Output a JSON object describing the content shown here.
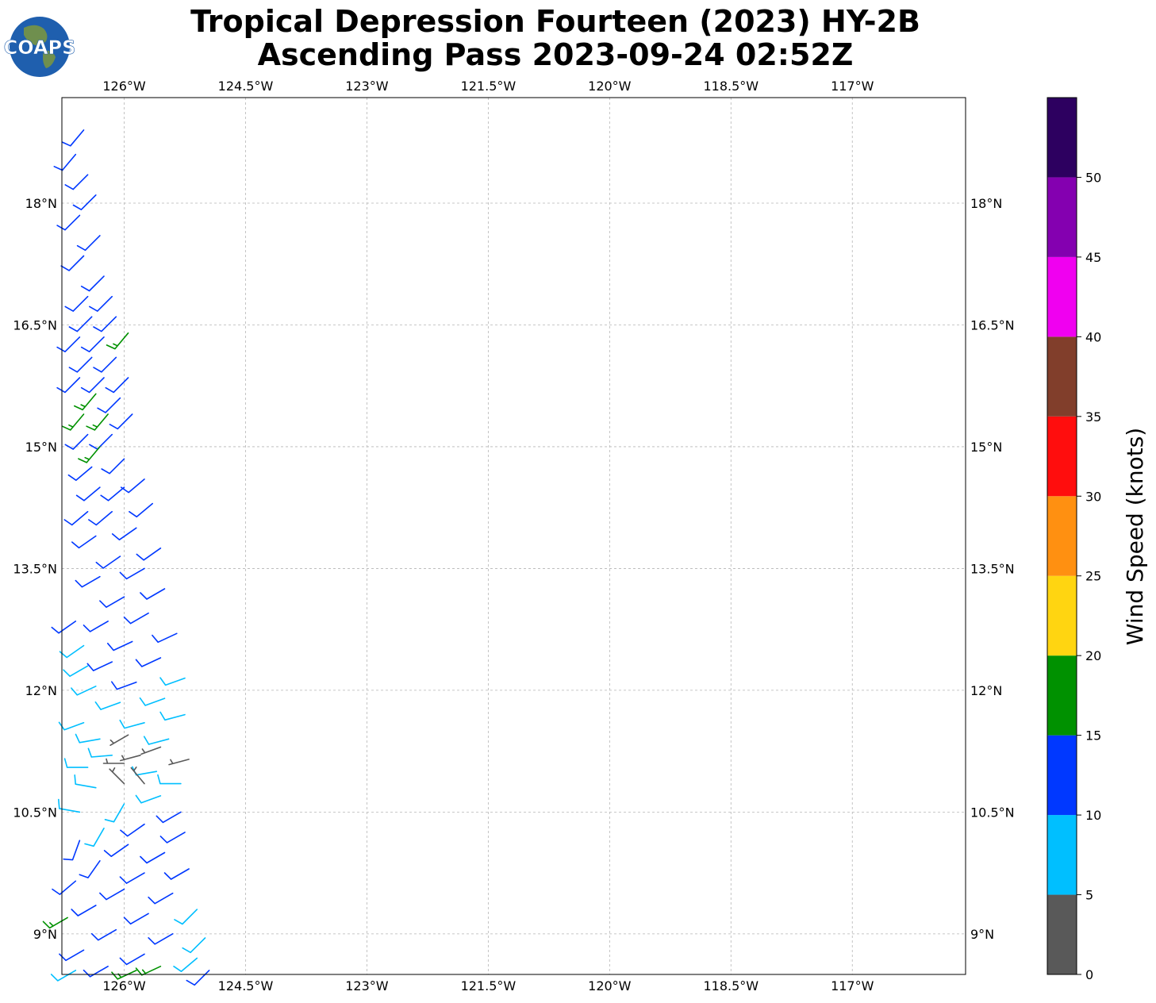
{
  "title": {
    "line1": "Tropical Depression Fourteen (2023) HY-2B",
    "line2": "Ascending Pass 2023-09-24 02:52Z"
  },
  "logo": {
    "text": "COAPS",
    "icon": "globe-logo-icon",
    "colors": {
      "ocean": "#1f5fae",
      "land": "#6f8f4e",
      "text": "#ffffff"
    }
  },
  "chart_data": {
    "type": "wind-barb-map",
    "title": "Tropical Depression Fourteen (2023) HY-2B Ascending Pass 2023-09-24 02:52Z",
    "projection": "PlateCarree",
    "extent": {
      "lon": [
        -126.77,
        -115.6
      ],
      "lat": [
        8.5,
        19.3
      ]
    },
    "lon_ticks": [
      -126,
      -124.5,
      -123,
      -121.5,
      -120,
      -118.5,
      -117
    ],
    "lon_tick_labels": [
      "126°W",
      "124.5°W",
      "123°W",
      "121.5°W",
      "120°W",
      "118.5°W",
      "117°W"
    ],
    "lat_ticks": [
      9,
      10.5,
      12,
      13.5,
      15,
      16.5,
      18
    ],
    "lat_tick_labels": [
      "9°N",
      "10.5°N",
      "12°N",
      "13.5°N",
      "15°N",
      "16.5°N",
      "18°N"
    ],
    "grid": true,
    "grid_style": "dashed light gray",
    "colorbar": {
      "label": "Wind Speed (knots)",
      "ticks": [
        0,
        5,
        10,
        15,
        20,
        25,
        30,
        35,
        40,
        45,
        50
      ],
      "tick_labels": [
        "0",
        "5",
        "10",
        "15",
        "20",
        "25",
        "30",
        "35",
        "40",
        "45",
        "50"
      ],
      "bounds": [
        0,
        5,
        10,
        15,
        20,
        25,
        30,
        35,
        40,
        45,
        50,
        55
      ],
      "colors": [
        "#595959",
        "#00bfff",
        "#0038ff",
        "#009100",
        "#ffd511",
        "#ff9011",
        "#ff0d0d",
        "#813e2b",
        "#f000f0",
        "#8400b0",
        "#2d0060"
      ]
    },
    "barbs": [
      {
        "lat": 18.9,
        "lon": -126.5,
        "speed": 12,
        "dir": 220
      },
      {
        "lat": 18.6,
        "lon": -126.6,
        "speed": 12,
        "dir": 220
      },
      {
        "lat": 18.35,
        "lon": -126.45,
        "speed": 12,
        "dir": 225
      },
      {
        "lat": 18.1,
        "lon": -126.35,
        "speed": 12,
        "dir": 225
      },
      {
        "lat": 17.85,
        "lon": -126.55,
        "speed": 12,
        "dir": 225
      },
      {
        "lat": 17.6,
        "lon": -126.3,
        "speed": 12,
        "dir": 225
      },
      {
        "lat": 17.35,
        "lon": -126.5,
        "speed": 12,
        "dir": 225
      },
      {
        "lat": 17.1,
        "lon": -126.25,
        "speed": 12,
        "dir": 225
      },
      {
        "lat": 16.85,
        "lon": -126.45,
        "speed": 12,
        "dir": 225
      },
      {
        "lat": 16.85,
        "lon": -126.15,
        "speed": 12,
        "dir": 225
      },
      {
        "lat": 16.6,
        "lon": -126.4,
        "speed": 12,
        "dir": 225
      },
      {
        "lat": 16.6,
        "lon": -126.1,
        "speed": 12,
        "dir": 225
      },
      {
        "lat": 16.35,
        "lon": -126.55,
        "speed": 12,
        "dir": 225
      },
      {
        "lat": 16.35,
        "lon": -126.25,
        "speed": 12,
        "dir": 225
      },
      {
        "lat": 16.4,
        "lon": -125.95,
        "speed": 16,
        "dir": 220
      },
      {
        "lat": 16.1,
        "lon": -126.4,
        "speed": 12,
        "dir": 225
      },
      {
        "lat": 16.1,
        "lon": -126.1,
        "speed": 12,
        "dir": 225
      },
      {
        "lat": 15.85,
        "lon": -126.55,
        "speed": 12,
        "dir": 225
      },
      {
        "lat": 15.85,
        "lon": -126.25,
        "speed": 12,
        "dir": 225
      },
      {
        "lat": 15.85,
        "lon": -125.95,
        "speed": 12,
        "dir": 225
      },
      {
        "lat": 15.65,
        "lon": -126.35,
        "speed": 16,
        "dir": 220
      },
      {
        "lat": 15.6,
        "lon": -126.05,
        "speed": 12,
        "dir": 225
      },
      {
        "lat": 15.4,
        "lon": -126.5,
        "speed": 16,
        "dir": 220
      },
      {
        "lat": 15.4,
        "lon": -126.2,
        "speed": 16,
        "dir": 220
      },
      {
        "lat": 15.4,
        "lon": -125.9,
        "speed": 12,
        "dir": 225
      },
      {
        "lat": 15.15,
        "lon": -126.45,
        "speed": 12,
        "dir": 225
      },
      {
        "lat": 15.15,
        "lon": -126.15,
        "speed": 12,
        "dir": 225
      },
      {
        "lat": 15.0,
        "lon": -126.3,
        "speed": 16,
        "dir": 220
      },
      {
        "lat": 14.85,
        "lon": -126.0,
        "speed": 12,
        "dir": 225
      },
      {
        "lat": 14.75,
        "lon": -126.4,
        "speed": 12,
        "dir": 230
      },
      {
        "lat": 14.6,
        "lon": -125.75,
        "speed": 12,
        "dir": 230
      },
      {
        "lat": 14.5,
        "lon": -126.3,
        "speed": 12,
        "dir": 230
      },
      {
        "lat": 14.5,
        "lon": -126.0,
        "speed": 12,
        "dir": 230
      },
      {
        "lat": 14.3,
        "lon": -125.65,
        "speed": 12,
        "dir": 230
      },
      {
        "lat": 14.2,
        "lon": -126.45,
        "speed": 12,
        "dir": 230
      },
      {
        "lat": 14.2,
        "lon": -126.15,
        "speed": 12,
        "dir": 230
      },
      {
        "lat": 14.0,
        "lon": -125.85,
        "speed": 12,
        "dir": 235
      },
      {
        "lat": 13.9,
        "lon": -126.35,
        "speed": 12,
        "dir": 235
      },
      {
        "lat": 13.75,
        "lon": -125.55,
        "speed": 12,
        "dir": 235
      },
      {
        "lat": 13.65,
        "lon": -126.05,
        "speed": 12,
        "dir": 235
      },
      {
        "lat": 13.5,
        "lon": -125.75,
        "speed": 12,
        "dir": 240
      },
      {
        "lat": 13.4,
        "lon": -126.3,
        "speed": 12,
        "dir": 240
      },
      {
        "lat": 13.25,
        "lon": -125.5,
        "speed": 12,
        "dir": 240
      },
      {
        "lat": 13.15,
        "lon": -126.0,
        "speed": 12,
        "dir": 240
      },
      {
        "lat": 12.95,
        "lon": -125.7,
        "speed": 12,
        "dir": 240
      },
      {
        "lat": 12.85,
        "lon": -126.6,
        "speed": 12,
        "dir": 235
      },
      {
        "lat": 12.85,
        "lon": -126.2,
        "speed": 12,
        "dir": 240
      },
      {
        "lat": 12.7,
        "lon": -125.35,
        "speed": 12,
        "dir": 245
      },
      {
        "lat": 12.6,
        "lon": -125.9,
        "speed": 12,
        "dir": 245
      },
      {
        "lat": 12.55,
        "lon": -126.5,
        "speed": 8,
        "dir": 235
      },
      {
        "lat": 12.4,
        "lon": -125.55,
        "speed": 12,
        "dir": 245
      },
      {
        "lat": 12.35,
        "lon": -126.15,
        "speed": 12,
        "dir": 245
      },
      {
        "lat": 12.3,
        "lon": -126.45,
        "speed": 8,
        "dir": 240
      },
      {
        "lat": 12.15,
        "lon": -125.25,
        "speed": 8,
        "dir": 250
      },
      {
        "lat": 12.1,
        "lon": -125.85,
        "speed": 12,
        "dir": 250
      },
      {
        "lat": 12.05,
        "lon": -126.35,
        "speed": 8,
        "dir": 245
      },
      {
        "lat": 11.9,
        "lon": -125.5,
        "speed": 8,
        "dir": 250
      },
      {
        "lat": 11.85,
        "lon": -126.05,
        "speed": 8,
        "dir": 250
      },
      {
        "lat": 11.7,
        "lon": -125.25,
        "speed": 8,
        "dir": 255
      },
      {
        "lat": 11.6,
        "lon": -126.5,
        "speed": 8,
        "dir": 250
      },
      {
        "lat": 11.6,
        "lon": -125.75,
        "speed": 8,
        "dir": 255
      },
      {
        "lat": 11.45,
        "lon": -125.95,
        "speed": 3,
        "dir": 240
      },
      {
        "lat": 11.4,
        "lon": -126.3,
        "speed": 8,
        "dir": 260
      },
      {
        "lat": 11.4,
        "lon": -125.45,
        "speed": 8,
        "dir": 255
      },
      {
        "lat": 11.3,
        "lon": -125.55,
        "speed": 3,
        "dir": 250
      },
      {
        "lat": 11.2,
        "lon": -125.8,
        "speed": 3,
        "dir": 255
      },
      {
        "lat": 11.2,
        "lon": -126.15,
        "speed": 8,
        "dir": 265
      },
      {
        "lat": 11.15,
        "lon": -125.2,
        "speed": 3,
        "dir": 255
      },
      {
        "lat": 11.1,
        "lon": -126.0,
        "speed": 3,
        "dir": 270
      },
      {
        "lat": 11.05,
        "lon": -126.45,
        "speed": 8,
        "dir": 270
      },
      {
        "lat": 11.0,
        "lon": -125.6,
        "speed": 8,
        "dir": 260
      },
      {
        "lat": 10.85,
        "lon": -126.0,
        "speed": 3,
        "dir": 315
      },
      {
        "lat": 10.85,
        "lon": -125.75,
        "speed": 3,
        "dir": 320
      },
      {
        "lat": 10.85,
        "lon": -125.3,
        "speed": 8,
        "dir": 270
      },
      {
        "lat": 10.8,
        "lon": -126.35,
        "speed": 8,
        "dir": 280
      },
      {
        "lat": 10.7,
        "lon": -125.55,
        "speed": 8,
        "dir": 250
      },
      {
        "lat": 10.6,
        "lon": -126.0,
        "speed": 8,
        "dir": 210
      },
      {
        "lat": 10.5,
        "lon": -126.55,
        "speed": 8,
        "dir": 280
      },
      {
        "lat": 10.5,
        "lon": -125.3,
        "speed": 12,
        "dir": 240
      },
      {
        "lat": 10.35,
        "lon": -125.75,
        "speed": 12,
        "dir": 235
      },
      {
        "lat": 10.3,
        "lon": -126.25,
        "speed": 8,
        "dir": 210
      },
      {
        "lat": 10.25,
        "lon": -125.25,
        "speed": 12,
        "dir": 240
      },
      {
        "lat": 10.15,
        "lon": -126.55,
        "speed": 12,
        "dir": 200
      },
      {
        "lat": 10.1,
        "lon": -125.95,
        "speed": 12,
        "dir": 235
      },
      {
        "lat": 10.0,
        "lon": -125.5,
        "speed": 12,
        "dir": 240
      },
      {
        "lat": 9.9,
        "lon": -126.3,
        "speed": 12,
        "dir": 215
      },
      {
        "lat": 9.8,
        "lon": -125.2,
        "speed": 12,
        "dir": 240
      },
      {
        "lat": 9.75,
        "lon": -125.75,
        "speed": 12,
        "dir": 240
      },
      {
        "lat": 9.65,
        "lon": -126.6,
        "speed": 12,
        "dir": 230
      },
      {
        "lat": 9.55,
        "lon": -126.0,
        "speed": 12,
        "dir": 240
      },
      {
        "lat": 9.5,
        "lon": -125.4,
        "speed": 12,
        "dir": 240
      },
      {
        "lat": 9.35,
        "lon": -126.35,
        "speed": 12,
        "dir": 240
      },
      {
        "lat": 9.3,
        "lon": -125.1,
        "speed": 8,
        "dir": 225
      },
      {
        "lat": 9.25,
        "lon": -125.7,
        "speed": 12,
        "dir": 240
      },
      {
        "lat": 9.2,
        "lon": -126.7,
        "speed": 16,
        "dir": 240
      },
      {
        "lat": 9.05,
        "lon": -126.1,
        "speed": 12,
        "dir": 240
      },
      {
        "lat": 9.0,
        "lon": -125.4,
        "speed": 12,
        "dir": 240
      },
      {
        "lat": 8.95,
        "lon": -125.0,
        "speed": 8,
        "dir": 225
      },
      {
        "lat": 8.8,
        "lon": -126.5,
        "speed": 12,
        "dir": 240
      },
      {
        "lat": 8.75,
        "lon": -125.75,
        "speed": 12,
        "dir": 240
      },
      {
        "lat": 8.7,
        "lon": -125.1,
        "speed": 8,
        "dir": 230
      },
      {
        "lat": 8.6,
        "lon": -126.2,
        "speed": 12,
        "dir": 240
      },
      {
        "lat": 8.6,
        "lon": -125.55,
        "speed": 16,
        "dir": 245
      },
      {
        "lat": 8.55,
        "lon": -125.85,
        "speed": 16,
        "dir": 245
      },
      {
        "lat": 8.55,
        "lon": -126.6,
        "speed": 8,
        "dir": 240
      },
      {
        "lat": 8.55,
        "lon": -124.95,
        "speed": 12,
        "dir": 225
      }
    ]
  }
}
